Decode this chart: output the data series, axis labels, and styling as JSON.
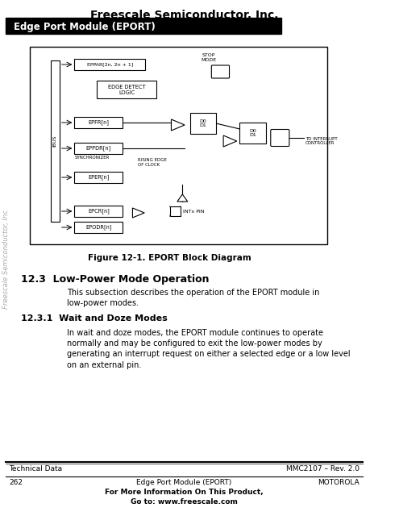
{
  "title": "Freescale Semiconductor, Inc.",
  "header_bar_text": "Edge Port Module (EPORT)",
  "header_bar_bg": "#000000",
  "header_bar_fg": "#ffffff",
  "page_bg": "#ffffff",
  "sidebar_text": "Freescale Semiconductor, Inc.",
  "sidebar_color": "#cccccc",
  "figure_caption": "Figure 12-1. EPORT Block Diagram",
  "section_heading": "12.3  Low-Power Mode Operation",
  "subsection_heading": "12.3.1  Wait and Doze Modes",
  "section_body": "This subsection describes the operation of the EPORT module in\nlow-power modes.",
  "subsection_body": "In wait and doze modes, the EPORT module continues to operate\nnormally and may be configured to exit the low-power modes by\ngenerating an interrupt request on either a selected edge or a low level\non an external pin.",
  "footer_left": "Technical Data",
  "footer_right": "MMC2107 – Rev. 2.0",
  "footer_page": "262",
  "footer_center_top": "Edge Port Module (EPORT)",
  "footer_center_right": "MOTOROLA",
  "footer_bold": "For More Information On This Product,\nGo to: www.freescale.com",
  "diagram_border_color": "#000000",
  "text_color": "#000000",
  "line_width": 1.0,
  "title_fontsize": 10,
  "header_fontsize": 8.5,
  "body_fontsize": 7.0,
  "section_fontsize": 9.0,
  "footer_fontsize": 6.5
}
